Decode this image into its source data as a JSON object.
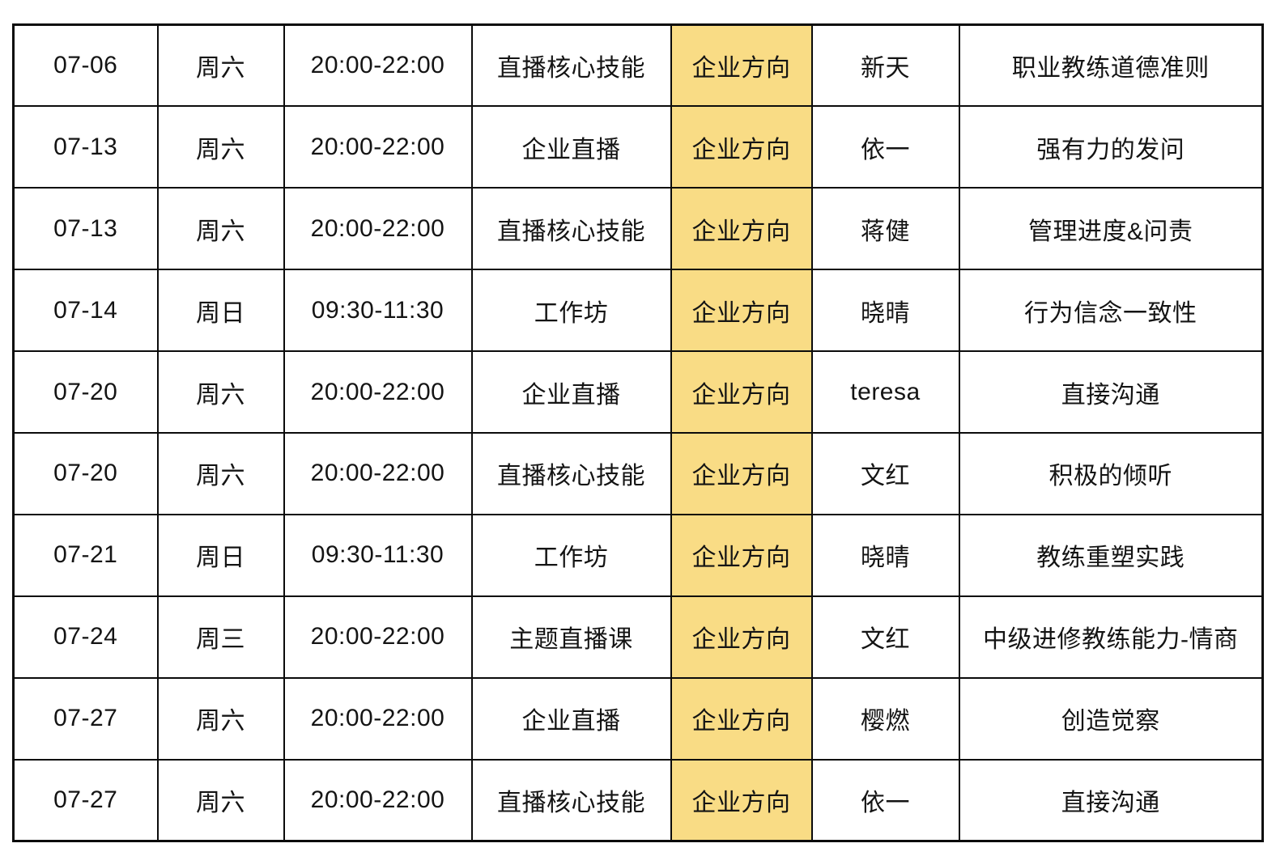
{
  "colors": {
    "direction_highlight": "#F9DC85",
    "border": "#0b0b0b",
    "text": "#141414",
    "background": "#ffffff"
  },
  "table": {
    "column_keys": [
      "date",
      "day",
      "time",
      "course",
      "direction",
      "teacher",
      "topic"
    ],
    "rows": [
      {
        "date": "07-06",
        "day": "周六",
        "time": "20:00-22:00",
        "course": "直播核心技能",
        "direction": "企业方向",
        "teacher": "新天",
        "topic": "职业教练道德准则"
      },
      {
        "date": "07-13",
        "day": "周六",
        "time": "20:00-22:00",
        "course": "企业直播",
        "direction": "企业方向",
        "teacher": "依一",
        "topic": "强有力的发问"
      },
      {
        "date": "07-13",
        "day": "周六",
        "time": "20:00-22:00",
        "course": "直播核心技能",
        "direction": "企业方向",
        "teacher": "蒋健",
        "topic": "管理进度&问责"
      },
      {
        "date": "07-14",
        "day": "周日",
        "time": "09:30-11:30",
        "course": "工作坊",
        "direction": "企业方向",
        "teacher": "晓晴",
        "topic": "行为信念一致性"
      },
      {
        "date": "07-20",
        "day": "周六",
        "time": "20:00-22:00",
        "course": "企业直播",
        "direction": "企业方向",
        "teacher": "teresa",
        "topic": "直接沟通"
      },
      {
        "date": "07-20",
        "day": "周六",
        "time": "20:00-22:00",
        "course": "直播核心技能",
        "direction": "企业方向",
        "teacher": "文红",
        "topic": "积极的倾听"
      },
      {
        "date": "07-21",
        "day": "周日",
        "time": "09:30-11:30",
        "course": "工作坊",
        "direction": "企业方向",
        "teacher": "晓晴",
        "topic": "教练重塑实践"
      },
      {
        "date": "07-24",
        "day": "周三",
        "time": "20:00-22:00",
        "course": "主题直播课",
        "direction": "企业方向",
        "teacher": "文红",
        "topic": "中级进修教练能力-情商"
      },
      {
        "date": "07-27",
        "day": "周六",
        "time": "20:00-22:00",
        "course": "企业直播",
        "direction": "企业方向",
        "teacher": "樱燃",
        "topic": "创造觉察"
      },
      {
        "date": "07-27",
        "day": "周六",
        "time": "20:00-22:00",
        "course": "直播核心技能",
        "direction": "企业方向",
        "teacher": "依一",
        "topic": "直接沟通"
      }
    ]
  }
}
